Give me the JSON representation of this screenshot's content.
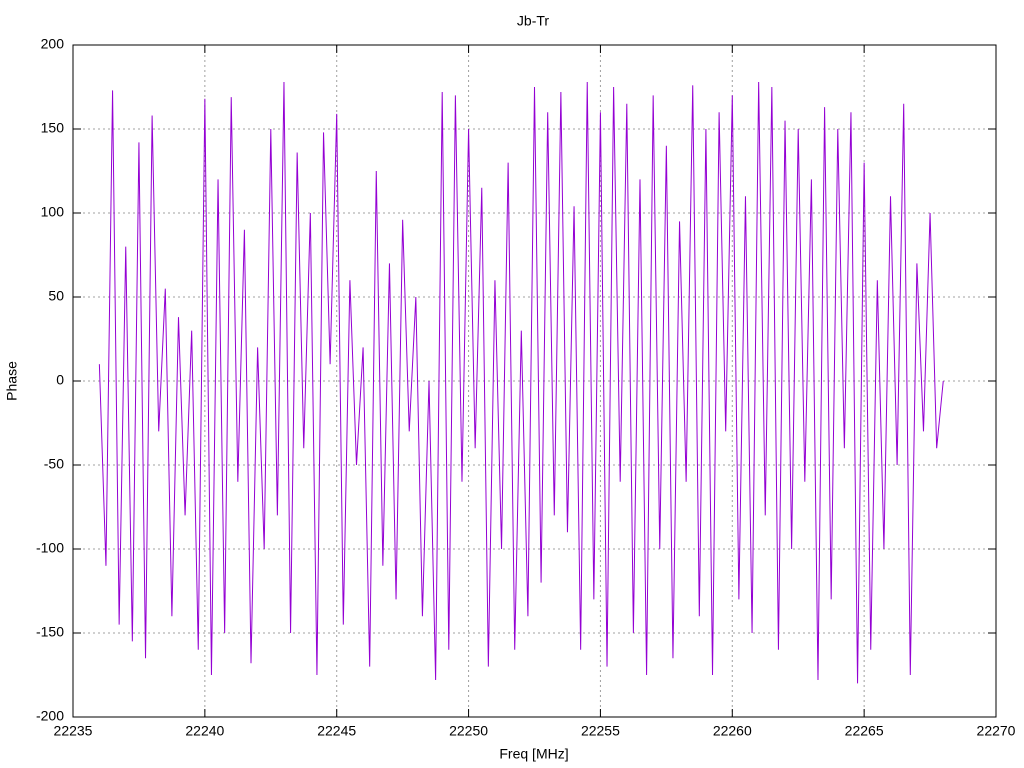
{
  "chart_data": {
    "type": "line",
    "title": "Jb-Tr",
    "xlabel": "Freq [MHz]",
    "ylabel": "Phase",
    "color": "#9400d3",
    "grid": true,
    "xlim": [
      22235,
      22270
    ],
    "xticks": [
      22235,
      22240,
      22245,
      22250,
      22255,
      22260,
      22265,
      22270
    ],
    "ylim": [
      -200,
      200
    ],
    "yticks": [
      -200,
      -150,
      -100,
      -50,
      0,
      50,
      100,
      150,
      200
    ],
    "x": [
      22236,
      22236.25,
      22236.5,
      22236.75,
      22237,
      22237.25,
      22237.5,
      22237.75,
      22238,
      22238.25,
      22238.5,
      22238.75,
      22239,
      22239.25,
      22239.5,
      22239.75,
      22240,
      22240.25,
      22240.5,
      22240.75,
      22241,
      22241.25,
      22241.5,
      22241.75,
      22242,
      22242.25,
      22242.5,
      22242.75,
      22243,
      22243.25,
      22243.5,
      22243.75,
      22244,
      22244.25,
      22244.5,
      22244.75,
      22245,
      22245.25,
      22245.5,
      22245.75,
      22246,
      22246.25,
      22246.5,
      22246.75,
      22247,
      22247.25,
      22247.5,
      22247.75,
      22248,
      22248.25,
      22248.5,
      22248.75,
      22249,
      22249.25,
      22249.5,
      22249.75,
      22250,
      22250.25,
      22250.5,
      22250.75,
      22251,
      22251.25,
      22251.5,
      22251.75,
      22252,
      22252.25,
      22252.5,
      22252.75,
      22253,
      22253.25,
      22253.5,
      22253.75,
      22254,
      22254.25,
      22254.5,
      22254.75,
      22255,
      22255.25,
      22255.5,
      22255.75,
      22256,
      22256.25,
      22256.5,
      22256.75,
      22257,
      22257.25,
      22257.5,
      22257.75,
      22258,
      22258.25,
      22258.5,
      22258.75,
      22259,
      22259.25,
      22259.5,
      22259.75,
      22260,
      22260.25,
      22260.5,
      22260.75,
      22261,
      22261.25,
      22261.5,
      22261.75,
      22262,
      22262.25,
      22262.5,
      22262.75,
      22263,
      22263.25,
      22263.5,
      22263.75,
      22264,
      22264.25,
      22264.5,
      22264.75,
      22265,
      22265.25,
      22265.5,
      22265.75,
      22266,
      22266.25,
      22266.5,
      22266.75,
      22267,
      22267.25,
      22267.5,
      22267.75,
      22268
    ],
    "values": [
      10,
      -110,
      173,
      -145,
      80,
      -155,
      142,
      -165,
      158,
      -30,
      55,
      -140,
      38,
      -80,
      30,
      -160,
      168,
      -175,
      120,
      -150,
      169,
      -60,
      90,
      -168,
      20,
      -100,
      150,
      -80,
      178,
      -150,
      136,
      -40,
      100,
      -175,
      148,
      10,
      159,
      -145,
      60,
      -50,
      20,
      -170,
      125,
      -110,
      70,
      -130,
      96,
      -30,
      50,
      -140,
      0,
      -178,
      172,
      -160,
      170,
      -60,
      150,
      -40,
      115,
      -170,
      60,
      -100,
      130,
      -160,
      30,
      -140,
      175,
      -120,
      160,
      -80,
      172,
      -90,
      104,
      -160,
      178,
      -130,
      160,
      -170,
      175,
      -60,
      165,
      -150,
      120,
      -175,
      170,
      -100,
      140,
      -165,
      95,
      -60,
      176,
      -140,
      150,
      -175,
      160,
      -30,
      170,
      -130,
      110,
      -150,
      178,
      -80,
      175,
      -160,
      155,
      -100,
      150,
      -60,
      120,
      -178,
      163,
      -130,
      150,
      -40,
      160,
      -180,
      130,
      -160,
      60,
      -100,
      110,
      -50,
      165,
      -175,
      70,
      -30,
      100,
      -40,
      0
    ]
  }
}
